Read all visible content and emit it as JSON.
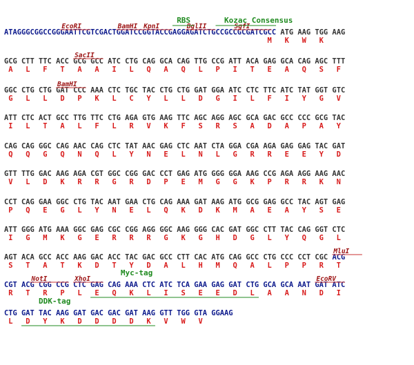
{
  "colors": {
    "plasmid": "#0d1a8c",
    "insert": "#333333",
    "amino_acid": "#d81b1b",
    "enzyme": "#9c1212",
    "enzyme_line": "#c83232",
    "feature": "#1f8a1f"
  },
  "rows": [
    {
      "plasmid": "ATAGGGCGGCCGGGAATTCGTCGACTGGATCCGGTACCGAGGAGATCTGCCGCCGCGATCGCC",
      "insert": "ATG AAG TGG AAG",
      "aa_start": 60,
      "aa": [
        "M",
        "K",
        "W",
        "K"
      ]
    },
    {
      "plasmid": "",
      "insert": "GCG CTT TTC ACC GCG GCC ATC CTG CAG GCA CAG TTG CCG ATT ACA GAG GCA CAG AGC TTT",
      "aa_start": 0,
      "aa": [
        "A",
        "L",
        "F",
        "T",
        "A",
        "A",
        "I",
        "L",
        "Q",
        "A",
        "Q",
        "L",
        "P",
        "I",
        "T",
        "E",
        "A",
        "Q",
        "S",
        "F"
      ]
    },
    {
      "plasmid": "",
      "insert": "GGC CTG CTG GAT CCC AAA CTC TGC TAC CTG CTG GAT GGA ATC CTC TTC ATC TAT GGT GTC",
      "aa_start": 0,
      "aa": [
        "G",
        "L",
        "L",
        "D",
        "P",
        "K",
        "L",
        "C",
        "Y",
        "L",
        "L",
        "D",
        "G",
        "I",
        "L",
        "F",
        "I",
        "Y",
        "G",
        "V"
      ]
    },
    {
      "plasmid": "",
      "insert": "ATT CTC ACT GCC TTG TTC CTG AGA GTG AAG TTC AGC AGG AGC GCA GAC GCC CCC GCG TAC",
      "aa_start": 0,
      "aa": [
        "I",
        "L",
        "T",
        "A",
        "L",
        "F",
        "L",
        "R",
        "V",
        "K",
        "F",
        "S",
        "R",
        "S",
        "A",
        "D",
        "A",
        "P",
        "A",
        "Y"
      ]
    },
    {
      "plasmid": "",
      "insert": "CAG CAG GGC CAG AAC CAG CTC TAT AAC GAG CTC AAT CTA GGA CGA AGA GAG GAG TAC GAT",
      "aa_start": 0,
      "aa": [
        "Q",
        "Q",
        "G",
        "Q",
        "N",
        "Q",
        "L",
        "Y",
        "N",
        "E",
        "L",
        "N",
        "L",
        "G",
        "R",
        "R",
        "E",
        "E",
        "Y",
        "D"
      ]
    },
    {
      "plasmid": "",
      "insert": "GTT TTG GAC AAG AGA CGT GGC CGG GAC CCT GAG ATG GGG GGA AAG CCG AGA AGG AAG AAC",
      "aa_start": 0,
      "aa": [
        "V",
        "L",
        "D",
        "K",
        "R",
        "R",
        "G",
        "R",
        "D",
        "P",
        "E",
        "M",
        "G",
        "G",
        "K",
        "P",
        "R",
        "R",
        "K",
        "N"
      ]
    },
    {
      "plasmid": "",
      "insert": "CCT CAG GAA GGC CTG TAC AAT GAA CTG CAG AAA GAT AAG ATG GCG GAG GCC TAC AGT GAG",
      "aa_start": 0,
      "aa": [
        "P",
        "Q",
        "E",
        "G",
        "L",
        "Y",
        "N",
        "E",
        "L",
        "Q",
        "K",
        "D",
        "K",
        "M",
        "A",
        "E",
        "A",
        "Y",
        "S",
        "E"
      ]
    },
    {
      "plasmid": "",
      "insert": "ATT GGG ATG AAA GGC GAG CGC CGG AGG GGC AAG GGG CAC GAT GGC CTT TAC CAG GGT CTC",
      "aa_start": 0,
      "aa": [
        "I",
        "G",
        "M",
        "K",
        "G",
        "E",
        "R",
        "R",
        "R",
        "G",
        "K",
        "G",
        "H",
        "D",
        "G",
        "L",
        "Y",
        "Q",
        "G",
        "L"
      ]
    },
    {
      "plasmid": "ACG",
      "insert": "AGT ACA GCC ACC AAG GAC ACC TAC GAC GCC CTT CAC ATG CAG GCC CTG CCC CCT CGC",
      "aa_start": 0,
      "aa": [
        "S",
        "T",
        "A",
        "T",
        "K",
        "D",
        "T",
        "Y",
        "D",
        "A",
        "L",
        "H",
        "M",
        "Q",
        "A",
        "L",
        "P",
        "P",
        "R",
        "T"
      ]
    },
    {
      "plasmid": "CGT ACG CGG CCG CTC GAG CAG AAA CTC ATC TCA GAA GAG GAT CTG GCA GCA AAT GAT ATC",
      "insert": "",
      "aa_start": 0,
      "aa": [
        "R",
        "T",
        "R",
        "P",
        "L",
        "E",
        "Q",
        "K",
        "L",
        "I",
        "S",
        "E",
        "E",
        "D",
        "L",
        "A",
        "A",
        "N",
        "D",
        "I"
      ]
    },
    {
      "plasmid": "CTG GAT TAC AAG GAT GAC GAC GAT AAG GTT TGG GTA GGAAG",
      "insert": "",
      "aa_start": 0,
      "aa": [
        "L",
        "D",
        "Y",
        "K",
        "D",
        "D",
        "D",
        "D",
        "K",
        "V",
        "W",
        "V"
      ]
    }
  ],
  "enzymes": [
    {
      "name": "EcoRI",
      "row": 0,
      "col": 13,
      "len": 6
    },
    {
      "name": "BamHI",
      "row": 0,
      "col": 26,
      "len": 6
    },
    {
      "name": "KpnI",
      "row": 0,
      "col": 32,
      "len": 6
    },
    {
      "name": "BglII",
      "row": 0,
      "col": 42,
      "len": 6
    },
    {
      "name": "SgfI",
      "row": 0,
      "col": 53,
      "len": 8
    },
    {
      "name": "SacII",
      "row": 1,
      "col": 16,
      "len": 6
    },
    {
      "name": "BamHI",
      "row": 2,
      "col": 12,
      "len": 6
    },
    {
      "name": "MluI",
      "row": 8,
      "col": 76,
      "len": 6
    },
    {
      "name": "NotI",
      "row": 9,
      "col": 6,
      "len": 8
    },
    {
      "name": "XhoI",
      "row": 9,
      "col": 16,
      "len": 6
    },
    {
      "name": "EcoRV",
      "row": 9,
      "col": 72,
      "len": 6
    }
  ],
  "features": [
    {
      "name": "RBS",
      "row": 0,
      "label_col": 40,
      "line_from": 39,
      "line_to": 44
    },
    {
      "name": "Kozac Consensus",
      "row": 0,
      "label_col": 51,
      "line_from": 49,
      "line_to": 63
    },
    {
      "name": "Myc-tag",
      "row": 9,
      "label_col": 27,
      "line_from": 20,
      "line_to": 59
    },
    {
      "name": "DDK-tag",
      "row": 10,
      "label_col": 8,
      "line_from": 4,
      "line_to": 35
    }
  ]
}
